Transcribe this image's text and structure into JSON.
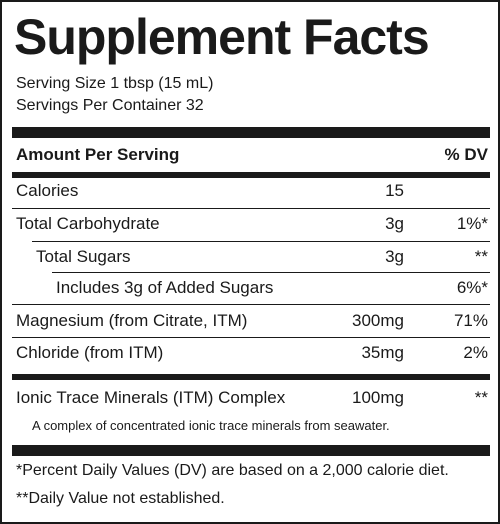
{
  "title": "Supplement Facts",
  "serving_size": "Serving Size 1 tbsp (15 mL)",
  "servings_per_container": "Servings Per Container 32",
  "header": {
    "amount_label": "Amount Per Serving",
    "dv_label": "% DV"
  },
  "rows": [
    {
      "name": "Calories",
      "amount": "15",
      "dv": ""
    },
    {
      "name": "Total Carbohydrate",
      "amount": "3g",
      "dv": "1%*"
    },
    {
      "name": "Total Sugars",
      "amount": "3g",
      "dv": "**"
    },
    {
      "name": "Includes 3g of Added Sugars",
      "amount": "",
      "dv": "6%*"
    },
    {
      "name": "Magnesium (from Citrate, ITM)",
      "amount": "300mg",
      "dv": "71%"
    },
    {
      "name": "Chloride (from ITM)",
      "amount": "35mg",
      "dv": "2%"
    },
    {
      "name": "Ionic Trace Minerals (ITM) Complex",
      "amount": "100mg",
      "dv": "**"
    }
  ],
  "complex_note": "A complex of concentrated ionic trace minerals from seawater.",
  "footnotes": [
    "*Percent Daily Values (DV) are based on a 2,000 calorie diet.",
    "**Daily Value not established."
  ]
}
